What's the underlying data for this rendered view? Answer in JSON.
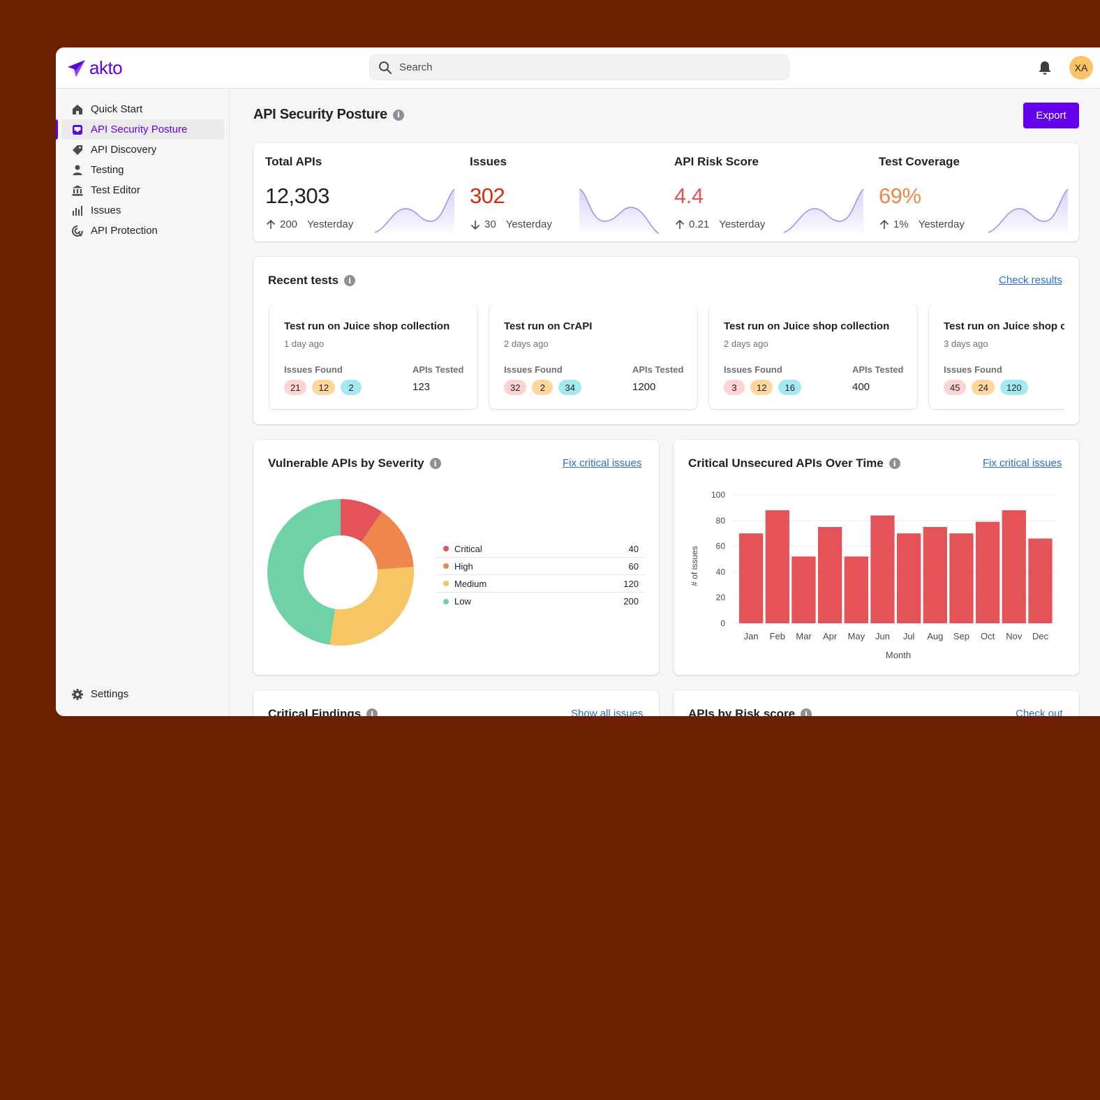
{
  "app": {
    "logo_text": "akto",
    "search_placeholder": "Search",
    "avatar_initials": "XA",
    "colors": {
      "brand": "#6200ea",
      "background": "#6c2000"
    }
  },
  "sidebar": {
    "items": [
      {
        "label": "Quick Start",
        "icon": "home-icon"
      },
      {
        "label": "API Security Posture",
        "icon": "inbox-icon",
        "active": true
      },
      {
        "label": "API Discovery",
        "icon": "tag-icon"
      },
      {
        "label": "Testing",
        "icon": "person-icon"
      },
      {
        "label": "Test Editor",
        "icon": "bank-icon"
      },
      {
        "label": "Issues",
        "icon": "bar-chart-icon"
      },
      {
        "label": "API Protection",
        "icon": "target-icon"
      }
    ],
    "settings_label": "Settings"
  },
  "page": {
    "title": "API Security Posture",
    "export_label": "Export"
  },
  "metrics": [
    {
      "title": "Total APIs",
      "value": "12,303",
      "value_color": "#202223",
      "direction": "up",
      "delta": "200",
      "period": "Yesterday"
    },
    {
      "title": "Issues",
      "value": "302",
      "value_color": "#d72c0d",
      "direction": "down",
      "delta": "30",
      "period": "Yesterday"
    },
    {
      "title": "API Risk Score",
      "value": "4.4",
      "value_color": "#e45357",
      "direction": "up",
      "delta": "0.21",
      "period": "Yesterday"
    },
    {
      "title": "Test Coverage",
      "value": "69%",
      "value_color": "#ef864c",
      "direction": "up",
      "delta": "1%",
      "period": "Yesterday"
    }
  ],
  "recent_tests": {
    "title": "Recent tests",
    "link": "Check results",
    "issues_label": "Issues Found",
    "apis_label": "APIs Tested",
    "items": [
      {
        "name": "Test run on Juice shop collection",
        "time": "1 day ago",
        "critical": "21",
        "high": "12",
        "medium": "2",
        "apis": "123"
      },
      {
        "name": "Test run on CrAPI",
        "time": "2 days ago",
        "critical": "32",
        "high": "2",
        "medium": "34",
        "apis": "1200"
      },
      {
        "name": "Test run on Juice shop collection",
        "time": "2 days ago",
        "critical": "3",
        "high": "12",
        "medium": "16",
        "apis": "400"
      },
      {
        "name": "Test run on Juice shop collection",
        "time": "3 days ago",
        "critical": "45",
        "high": "24",
        "medium": "120",
        "apis": ""
      }
    ]
  },
  "severity": {
    "title": "Vulnerable APIs by Severity",
    "link": "Fix critical issues"
  },
  "trend": {
    "title": "Critical Unsecured APIs Over Time",
    "link": "Fix critical issues"
  },
  "critical_findings": {
    "title": "Critical Findings",
    "link": "Show all issues"
  },
  "risk_score": {
    "title": "APIs by Risk score",
    "link": "Check out"
  },
  "chart_data": [
    {
      "type": "pie",
      "categories": [
        "Critical",
        "High",
        "Medium",
        "Low"
      ],
      "values": [
        40,
        60,
        120,
        200
      ],
      "colors": [
        "#e45357",
        "#ef864c",
        "#f6c564",
        "#6fd1a6"
      ],
      "legend": "right"
    },
    {
      "type": "bar",
      "categories": [
        "Jan",
        "Feb",
        "Mar",
        "Apr",
        "May",
        "Jun",
        "Jul",
        "Aug",
        "Sep",
        "Oct",
        "Nov",
        "Dec"
      ],
      "values": [
        70,
        88,
        52,
        75,
        52,
        84,
        70,
        75,
        70,
        79,
        88,
        66
      ],
      "xlabel": "Month",
      "ylabel": "# of issues",
      "ylim": [
        0,
        100
      ],
      "yticks": [
        0,
        20,
        40,
        60,
        80,
        100
      ],
      "grid": true,
      "color": "#e45357"
    }
  ]
}
